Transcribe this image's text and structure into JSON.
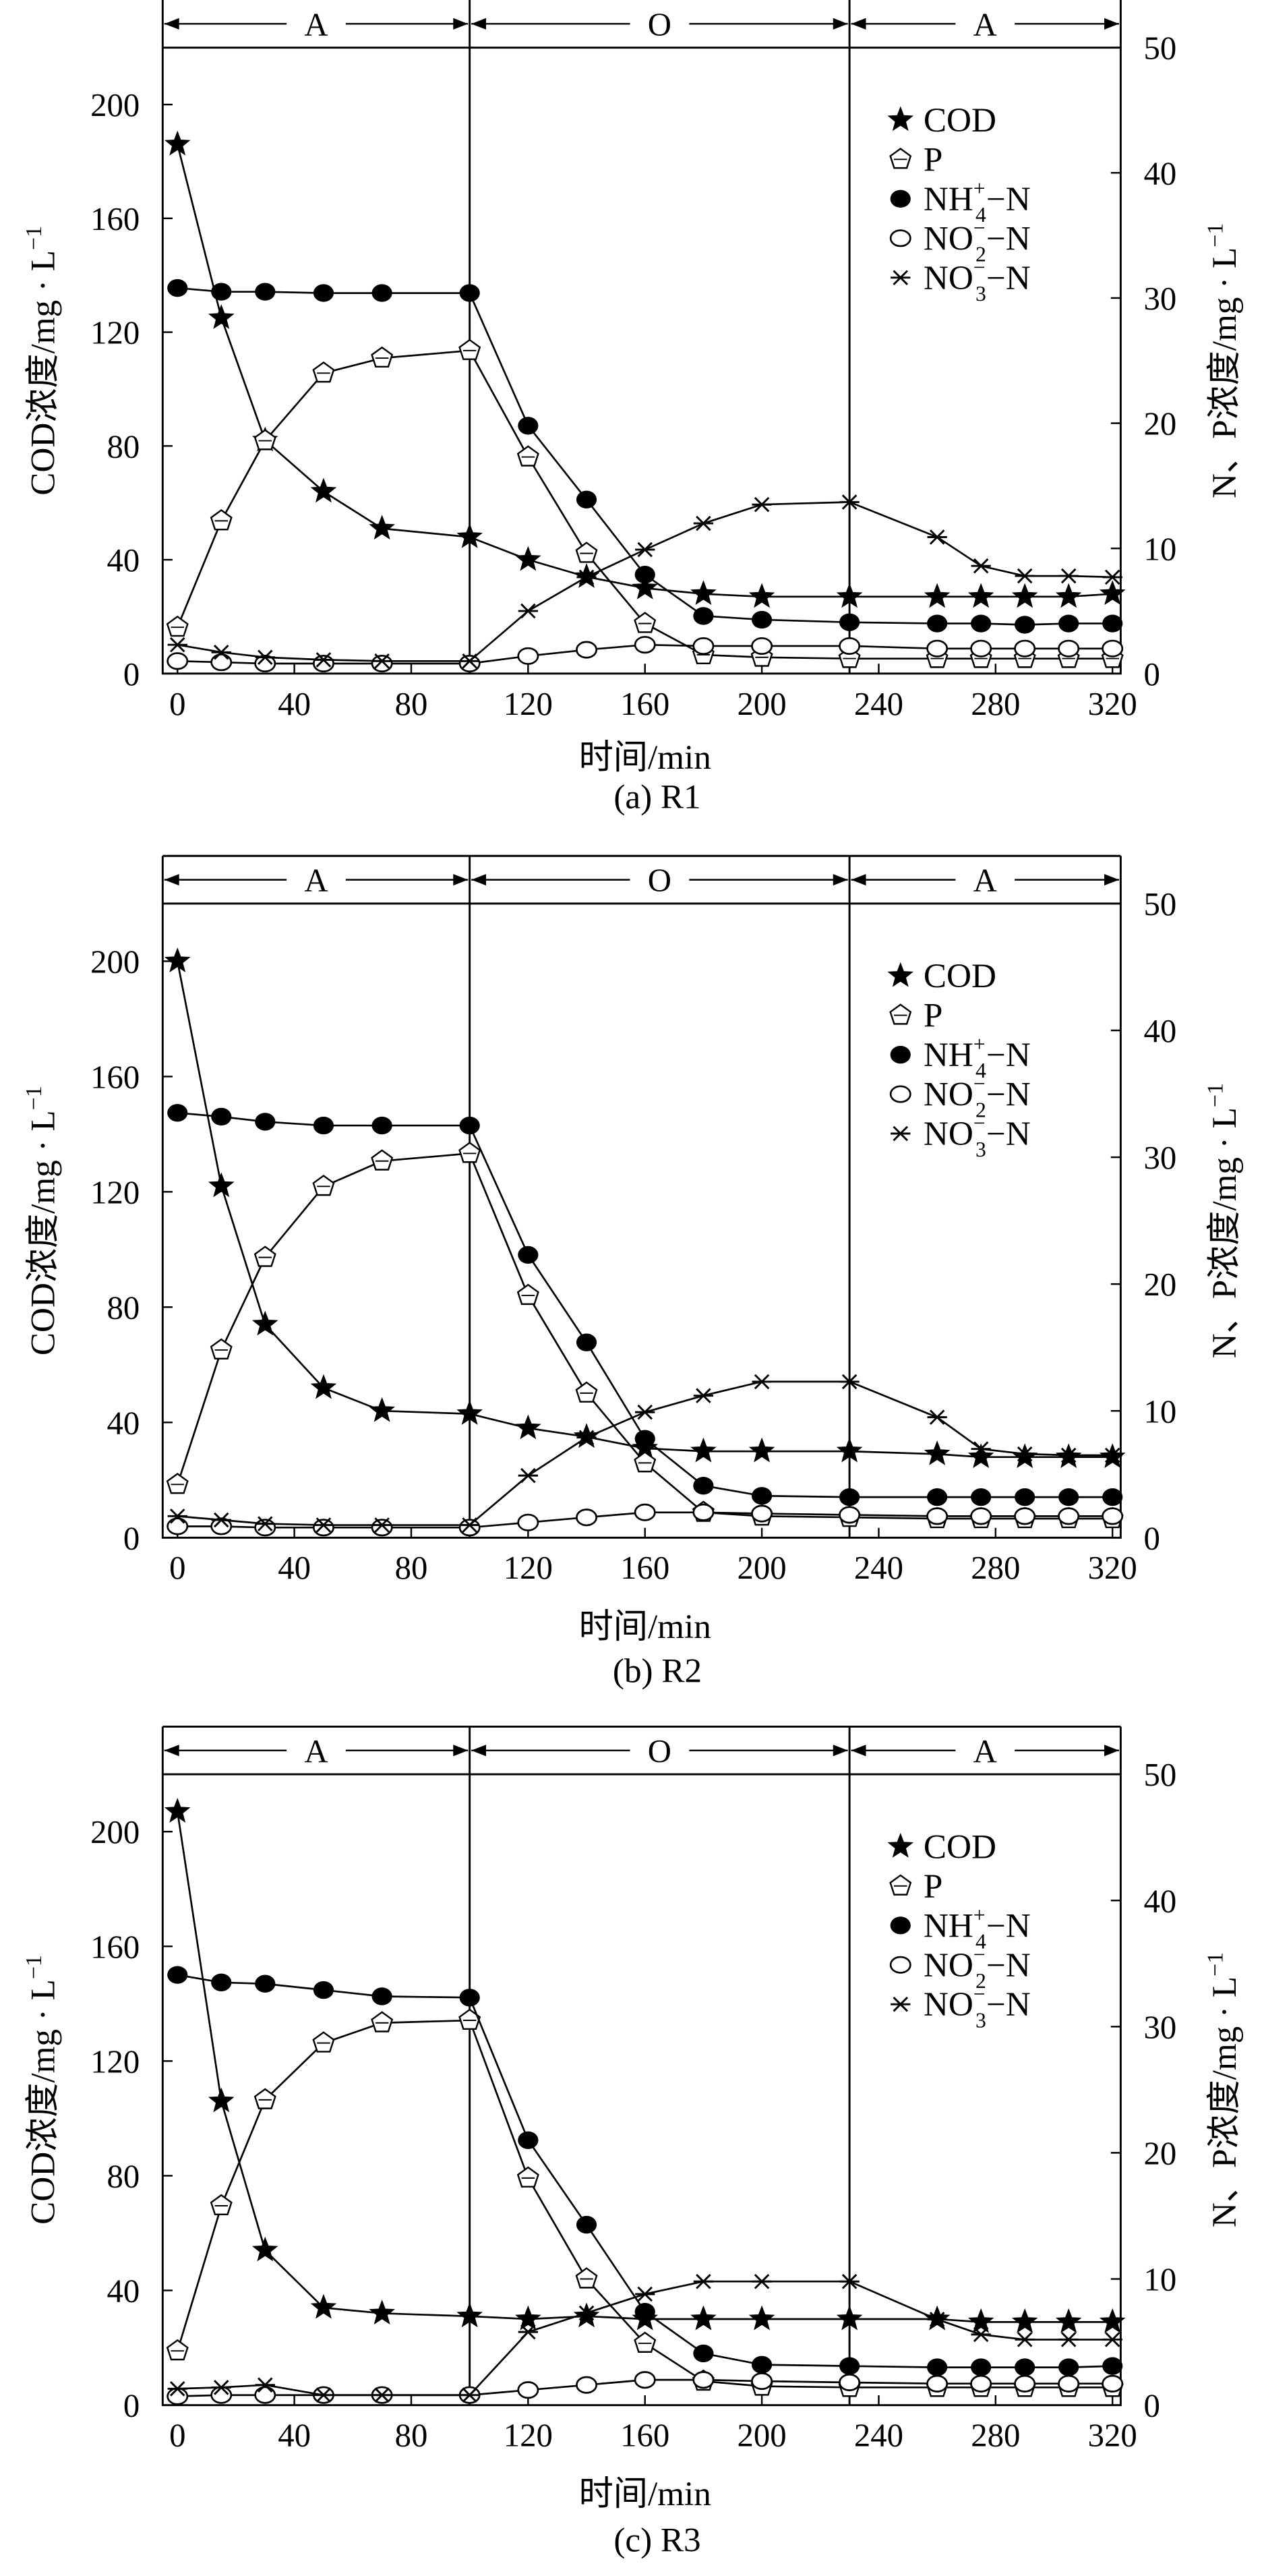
{
  "chart_data": [
    {
      "type": "line",
      "caption": "(a) R1",
      "xlabel": "时间/min",
      "ylabel_left": "COD浓度/mg · L",
      "ylabel_left_sup": "−1",
      "ylabel_right": "N、P浓度/mg · L",
      "ylabel_right_sup": "−1",
      "xlim": [
        0,
        320
      ],
      "ylim_left": [
        0,
        220
      ],
      "ylim_right": [
        0,
        50
      ],
      "xticks": [
        "0",
        "40",
        "80",
        "120",
        "160",
        "200",
        "240",
        "280",
        "320"
      ],
      "yticks_left": [
        "0",
        "40",
        "80",
        "120",
        "160",
        "200"
      ],
      "yticks_right": [
        "0",
        "10",
        "20",
        "30",
        "40",
        "50"
      ],
      "phases": [
        {
          "label": "A",
          "from": 0,
          "to": 100
        },
        {
          "label": "O",
          "from": 100,
          "to": 230
        },
        {
          "label": "A",
          "from": 230,
          "to": 320
        }
      ],
      "legend": [
        "COD",
        "P",
        "NH4+−N",
        "NO2−−N",
        "NO3−−N"
      ],
      "series": [
        {
          "name": "COD",
          "axis": "left",
          "marker": "star",
          "x": [
            0,
            15,
            30,
            50,
            70,
            100,
            120,
            140,
            160,
            180,
            200,
            230,
            260,
            275,
            290,
            305,
            320
          ],
          "y": [
            186,
            125,
            82,
            64,
            51,
            48,
            40,
            34,
            30,
            28,
            27,
            27,
            27,
            27,
            27,
            27,
            28
          ]
        },
        {
          "name": "P",
          "axis": "right",
          "marker": "pentagon",
          "x": [
            0,
            15,
            30,
            50,
            70,
            100,
            120,
            140,
            160,
            180,
            200,
            230,
            260,
            275,
            290,
            305,
            320
          ],
          "y": [
            3.7,
            12.2,
            18.6,
            24,
            25.2,
            25.8,
            17.3,
            9.6,
            4,
            1.5,
            1.3,
            1.2,
            1.2,
            1.2,
            1.2,
            1.2,
            1.2
          ]
        },
        {
          "name": "NH4+−N",
          "axis": "right",
          "marker": "filled-circle",
          "x": [
            0,
            15,
            30,
            50,
            70,
            100,
            120,
            140,
            160,
            180,
            200,
            230,
            260,
            275,
            290,
            305,
            320
          ],
          "y": [
            30.8,
            30.5,
            30.5,
            30.4,
            30.4,
            30.4,
            19.8,
            13.9,
            7.9,
            4.6,
            4.3,
            4.1,
            4,
            4,
            3.9,
            4,
            4
          ]
        },
        {
          "name": "NO2−−N",
          "axis": "right",
          "marker": "open-circle",
          "x": [
            0,
            15,
            30,
            50,
            70,
            100,
            120,
            140,
            160,
            180,
            200,
            230,
            260,
            275,
            290,
            305,
            320
          ],
          "y": [
            1,
            0.9,
            0.8,
            0.8,
            0.8,
            0.8,
            1.4,
            1.9,
            2.3,
            2.2,
            2.2,
            2.2,
            2,
            2,
            2,
            2,
            2
          ]
        },
        {
          "name": "NO3−−N",
          "axis": "right",
          "marker": "asterisk",
          "x": [
            0,
            15,
            30,
            50,
            70,
            100,
            120,
            140,
            160,
            180,
            200,
            230,
            260,
            275,
            290,
            305,
            320
          ],
          "y": [
            2.3,
            1.7,
            1.3,
            1.1,
            1,
            1,
            5,
            7.7,
            9.9,
            12,
            13.5,
            13.7,
            10.9,
            8.6,
            7.8,
            7.8,
            7.7
          ]
        }
      ]
    },
    {
      "type": "line",
      "caption": "(b) R2",
      "xlabel": "时间/min",
      "ylabel_left": "COD浓度/mg · L",
      "ylabel_left_sup": "−1",
      "ylabel_right": "N、P浓度/mg · L",
      "ylabel_right_sup": "−1",
      "xlim": [
        0,
        320
      ],
      "ylim_left": [
        0,
        220
      ],
      "ylim_right": [
        0,
        50
      ],
      "xticks": [
        "0",
        "40",
        "80",
        "120",
        "160",
        "200",
        "240",
        "280",
        "320"
      ],
      "yticks_left": [
        "0",
        "40",
        "80",
        "120",
        "160",
        "200"
      ],
      "yticks_right": [
        "0",
        "10",
        "20",
        "30",
        "40",
        "50"
      ],
      "phases": [
        {
          "label": "A",
          "from": 0,
          "to": 100
        },
        {
          "label": "O",
          "from": 100,
          "to": 230
        },
        {
          "label": "A",
          "from": 230,
          "to": 320
        }
      ],
      "legend": [
        "COD",
        "P",
        "NH4+−N",
        "NO2−−N",
        "NO3−−N"
      ],
      "series": [
        {
          "name": "COD",
          "axis": "left",
          "marker": "star",
          "x": [
            0,
            15,
            30,
            50,
            70,
            100,
            120,
            140,
            160,
            180,
            200,
            230,
            260,
            275,
            290,
            305,
            320
          ],
          "y": [
            200,
            122,
            74,
            52,
            44,
            43,
            38,
            35,
            31,
            30,
            30,
            30,
            29,
            28,
            28,
            28,
            28
          ]
        },
        {
          "name": "P",
          "axis": "right",
          "marker": "pentagon",
          "x": [
            0,
            15,
            30,
            50,
            70,
            100,
            120,
            140,
            160,
            180,
            200,
            230,
            260,
            275,
            290,
            305,
            320
          ],
          "y": [
            4.2,
            14.8,
            22.1,
            27.7,
            29.7,
            30.3,
            19.1,
            11.4,
            5.9,
            2,
            1.7,
            1.6,
            1.5,
            1.5,
            1.5,
            1.5,
            1.5
          ]
        },
        {
          "name": "NH4+−N",
          "axis": "right",
          "marker": "filled-circle",
          "x": [
            0,
            15,
            30,
            50,
            70,
            100,
            120,
            140,
            160,
            180,
            200,
            230,
            260,
            275,
            290,
            305,
            320
          ],
          "y": [
            33.5,
            33.2,
            32.8,
            32.5,
            32.5,
            32.5,
            22.3,
            15.4,
            7.8,
            4.1,
            3.3,
            3.2,
            3.2,
            3.2,
            3.2,
            3.2,
            3.2
          ]
        },
        {
          "name": "NO2−−N",
          "axis": "right",
          "marker": "open-circle",
          "x": [
            0,
            15,
            30,
            50,
            70,
            100,
            120,
            140,
            160,
            180,
            200,
            230,
            260,
            275,
            290,
            305,
            320
          ],
          "y": [
            0.9,
            0.9,
            0.8,
            0.8,
            0.8,
            0.8,
            1.2,
            1.6,
            2,
            2,
            1.9,
            1.8,
            1.7,
            1.7,
            1.7,
            1.7,
            1.7
          ]
        },
        {
          "name": "NO3−−N",
          "axis": "right",
          "marker": "asterisk",
          "x": [
            0,
            15,
            30,
            50,
            70,
            100,
            120,
            140,
            160,
            180,
            200,
            230,
            260,
            275,
            290,
            305,
            320
          ],
          "y": [
            1.7,
            1.4,
            1.1,
            1,
            1,
            1,
            4.9,
            7.9,
            9.9,
            11.2,
            12.3,
            12.3,
            9.5,
            7,
            6.6,
            6.5,
            6.5
          ]
        }
      ]
    },
    {
      "type": "line",
      "caption": "(c) R3",
      "xlabel": "时间/min",
      "ylabel_left": "COD浓度/mg · L",
      "ylabel_left_sup": "−1",
      "ylabel_right": "N、P浓度/mg · L",
      "ylabel_right_sup": "−1",
      "xlim": [
        0,
        320
      ],
      "ylim_left": [
        0,
        220
      ],
      "ylim_right": [
        0,
        50
      ],
      "xticks": [
        "0",
        "40",
        "80",
        "120",
        "160",
        "200",
        "240",
        "280",
        "320"
      ],
      "yticks_left": [
        "0",
        "40",
        "80",
        "120",
        "160",
        "200"
      ],
      "yticks_right": [
        "0",
        "10",
        "20",
        "30",
        "40",
        "50"
      ],
      "phases": [
        {
          "label": "A",
          "from": 0,
          "to": 100
        },
        {
          "label": "O",
          "from": 100,
          "to": 230
        },
        {
          "label": "A",
          "from": 230,
          "to": 320
        }
      ],
      "legend": [
        "COD",
        "P",
        "NH4+−N",
        "NO2−−N",
        "NO3−−N"
      ],
      "series": [
        {
          "name": "COD",
          "axis": "left",
          "marker": "star",
          "x": [
            0,
            15,
            30,
            50,
            70,
            100,
            120,
            140,
            160,
            180,
            200,
            230,
            260,
            275,
            290,
            305,
            320
          ],
          "y": [
            207,
            106,
            54,
            34,
            32,
            31,
            30,
            31,
            30,
            30,
            30,
            30,
            30,
            29,
            29,
            29,
            29
          ]
        },
        {
          "name": "P",
          "axis": "right",
          "marker": "pentagon",
          "x": [
            0,
            15,
            30,
            50,
            70,
            100,
            120,
            140,
            160,
            180,
            200,
            230,
            260,
            275,
            290,
            305,
            320
          ],
          "y": [
            4.3,
            15.8,
            24.2,
            28.7,
            30.3,
            30.5,
            18,
            10,
            4.9,
            1.9,
            1.5,
            1.4,
            1.4,
            1.4,
            1.4,
            1.4,
            1.4
          ]
        },
        {
          "name": "NH4+−N",
          "axis": "right",
          "marker": "filled-circle",
          "x": [
            0,
            15,
            30,
            50,
            70,
            100,
            120,
            140,
            160,
            180,
            200,
            230,
            260,
            275,
            290,
            305,
            320
          ],
          "y": [
            34.1,
            33.5,
            33.4,
            32.9,
            32.4,
            32.3,
            21,
            14.3,
            7.4,
            4.1,
            3.2,
            3.1,
            3,
            3,
            3,
            3,
            3.1
          ]
        },
        {
          "name": "NO2−−N",
          "axis": "right",
          "marker": "open-circle",
          "x": [
            0,
            15,
            30,
            50,
            70,
            100,
            120,
            140,
            160,
            180,
            200,
            230,
            260,
            275,
            290,
            305,
            320
          ],
          "y": [
            0.7,
            0.8,
            0.8,
            0.8,
            0.8,
            0.8,
            1.2,
            1.6,
            2,
            2,
            1.9,
            1.8,
            1.7,
            1.7,
            1.7,
            1.7,
            1.7
          ]
        },
        {
          "name": "NO3−−N",
          "axis": "right",
          "marker": "asterisk",
          "x": [
            0,
            15,
            30,
            50,
            70,
            100,
            120,
            140,
            160,
            180,
            200,
            230,
            260,
            275,
            290,
            305,
            320
          ],
          "y": [
            1.3,
            1.4,
            1.6,
            0.8,
            0.8,
            0.8,
            5.8,
            7.3,
            8.8,
            9.8,
            9.8,
            9.8,
            6.8,
            5.6,
            5.2,
            5.2,
            5.2
          ]
        }
      ]
    }
  ]
}
